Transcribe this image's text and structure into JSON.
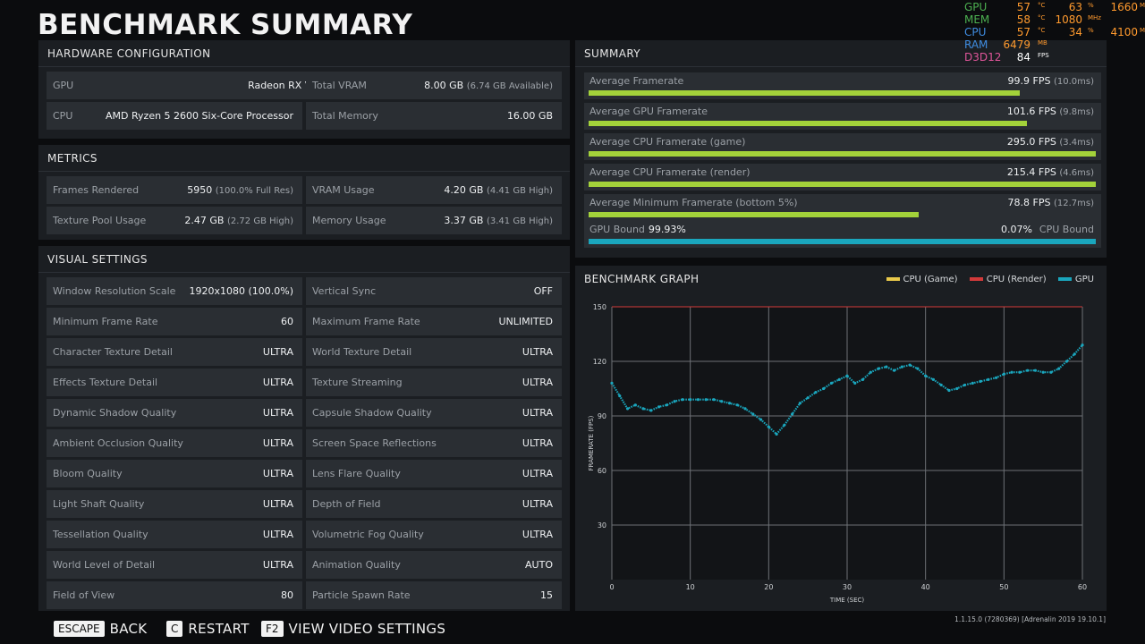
{
  "title": "BENCHMARK SUMMARY",
  "hardware": {
    "heading": "HARDWARE CONFIGURATION",
    "gpu_label": "GPU",
    "gpu_value": "Radeon RX Vega",
    "vram_label": "Total VRAM",
    "vram_value": "8.00 GB",
    "vram_sub": "(6.74 GB Available)",
    "cpu_label": "CPU",
    "cpu_value": "AMD Ryzen 5 2600 Six-Core Processor",
    "mem_label": "Total Memory",
    "mem_value": "16.00 GB"
  },
  "metrics": {
    "heading": "METRICS",
    "frames_label": "Frames Rendered",
    "frames_value": "5950",
    "frames_sub": "(100.0% Full Res)",
    "vram_label": "VRAM Usage",
    "vram_value": "4.20 GB",
    "vram_sub": "(4.41 GB High)",
    "pool_label": "Texture Pool Usage",
    "pool_value": "2.47 GB",
    "pool_sub": "(2.72 GB High)",
    "mem_label": "Memory Usage",
    "mem_value": "3.37 GB",
    "mem_sub": "(3.41 GB High)"
  },
  "visual": {
    "heading": "VISUAL SETTINGS",
    "rows": [
      {
        "l_label": "Window Resolution Scale",
        "l_value": "1920x1080 (100.0%)",
        "r_label": "Vertical Sync",
        "r_value": "OFF"
      },
      {
        "l_label": "Minimum Frame Rate",
        "l_value": "60",
        "r_label": "Maximum Frame Rate",
        "r_value": "UNLIMITED"
      },
      {
        "l_label": "Character Texture Detail",
        "l_value": "ULTRA",
        "r_label": "World Texture Detail",
        "r_value": "ULTRA"
      },
      {
        "l_label": "Effects Texture Detail",
        "l_value": "ULTRA",
        "r_label": "Texture Streaming",
        "r_value": "ULTRA"
      },
      {
        "l_label": "Dynamic Shadow Quality",
        "l_value": "ULTRA",
        "r_label": "Capsule Shadow Quality",
        "r_value": "ULTRA"
      },
      {
        "l_label": "Ambient Occlusion Quality",
        "l_value": "ULTRA",
        "r_label": "Screen Space Reflections",
        "r_value": "ULTRA"
      },
      {
        "l_label": "Bloom Quality",
        "l_value": "ULTRA",
        "r_label": "Lens Flare Quality",
        "r_value": "ULTRA"
      },
      {
        "l_label": "Light Shaft Quality",
        "l_value": "ULTRA",
        "r_label": "Depth of Field",
        "r_value": "ULTRA"
      },
      {
        "l_label": "Tessellation Quality",
        "l_value": "ULTRA",
        "r_label": "Volumetric Fog Quality",
        "r_value": "ULTRA"
      },
      {
        "l_label": "World Level of Detail",
        "l_value": "ULTRA",
        "r_label": "Animation Quality",
        "r_value": "AUTO"
      },
      {
        "l_label": "Field of View",
        "l_value": "80",
        "r_label": "Particle Spawn Rate",
        "r_value": "15"
      }
    ]
  },
  "summary": {
    "heading": "SUMMARY",
    "bars": [
      {
        "label": "Average Framerate",
        "value": "99.9 FPS",
        "sub": "(10.0ms)",
        "fill": 0.85
      },
      {
        "label": "Average GPU Framerate",
        "value": "101.6 FPS",
        "sub": "(9.8ms)",
        "fill": 0.865
      },
      {
        "label": "Average CPU Framerate (game)",
        "value": "295.0 FPS",
        "sub": "(3.4ms)",
        "fill": 1.0
      },
      {
        "label": "Average CPU Framerate (render)",
        "value": "215.4 FPS",
        "sub": "(4.6ms)",
        "fill": 1.0
      },
      {
        "label": "Average Minimum Framerate (bottom 5%)",
        "value": "78.8 FPS",
        "sub": "(12.7ms)",
        "fill": 0.65
      }
    ],
    "gpu_bound_label": "GPU Bound",
    "gpu_bound_value": "99.93%",
    "cpu_bound_label": "CPU Bound",
    "cpu_bound_value": "0.07%"
  },
  "graph": {
    "heading": "BENCHMARK GRAPH",
    "legend": [
      "CPU (Game)",
      "CPU (Render)",
      "GPU"
    ],
    "colors": {
      "cpu_game": "#e9c94a",
      "cpu_render": "#d33a3a",
      "gpu": "#1aa6bd"
    }
  },
  "chart_data": {
    "type": "scatter",
    "xlabel": "TIME (SEC)",
    "ylabel": "FRAMERATE (FPS)",
    "xlim": [
      0,
      60
    ],
    "ylim": [
      0,
      150
    ],
    "x_ticks": [
      0,
      10,
      20,
      30,
      40,
      50,
      60
    ],
    "y_ticks": [
      30,
      60,
      90,
      120,
      150
    ],
    "series": [
      {
        "name": "GPU",
        "color": "#1aa6bd",
        "x": [
          0,
          1,
          2,
          3,
          4,
          5,
          6,
          7,
          8,
          9,
          10,
          11,
          12,
          13,
          14,
          15,
          16,
          17,
          18,
          19,
          20,
          21,
          22,
          23,
          24,
          25,
          26,
          27,
          28,
          29,
          30,
          31,
          32,
          33,
          34,
          35,
          36,
          37,
          38,
          39,
          40,
          41,
          42,
          43,
          44,
          45,
          46,
          47,
          48,
          49,
          50,
          51,
          52,
          53,
          54,
          55,
          56,
          57,
          58,
          59,
          60
        ],
        "y": [
          108,
          101,
          94,
          96,
          94,
          93,
          95,
          96,
          98,
          99,
          99,
          99,
          99,
          99,
          98,
          97,
          96,
          94,
          91,
          88,
          84,
          80,
          85,
          91,
          97,
          100,
          103,
          105,
          108,
          110,
          112,
          108,
          110,
          114,
          116,
          117,
          115,
          117,
          118,
          116,
          112,
          110,
          107,
          104,
          105,
          107,
          108,
          109,
          110,
          111,
          113,
          114,
          114,
          115,
          115,
          114,
          114,
          116,
          120,
          124,
          129
        ]
      },
      {
        "name": "CPU (Render)",
        "color": "#d33a3a",
        "x": [
          0,
          10,
          20,
          30,
          40,
          50,
          60
        ],
        "y": [
          150,
          150,
          150,
          150,
          150,
          150,
          150
        ]
      }
    ]
  },
  "overlay": {
    "rows": [
      {
        "name": "GPU",
        "color": "#4caf50",
        "a": "57",
        "au": "°C",
        "b": "63",
        "bu": "%",
        "c": "1660",
        "cu": "MHz"
      },
      {
        "name": "MEM",
        "color": "#4caf50",
        "a": "58",
        "au": "°C",
        "b": "1080",
        "bu": "MHz",
        "c": "",
        "cu": ""
      },
      {
        "name": "CPU",
        "color": "#3f8ce0",
        "a": "57",
        "au": "°C",
        "b": "34",
        "bu": "%",
        "c": "4100",
        "cu": "MHz"
      },
      {
        "name": "RAM",
        "color": "#3f8ce0",
        "a": "6479",
        "au": "MB",
        "b": "",
        "bu": "",
        "c": "",
        "cu": ""
      },
      {
        "name": "D3D12",
        "color": "#e0559a",
        "a": "84",
        "au": "FPS",
        "b": "",
        "bu": "",
        "c": "",
        "cu": ""
      }
    ]
  },
  "footer": {
    "back_key": "ESCAPE",
    "back_label": "BACK",
    "restart_key": "C",
    "restart_label": "RESTART",
    "video_key": "F2",
    "video_label": "VIEW VIDEO SETTINGS",
    "version": "1.1.15.0 (7280369) [Adrenalin 2019 19.10.1]"
  }
}
